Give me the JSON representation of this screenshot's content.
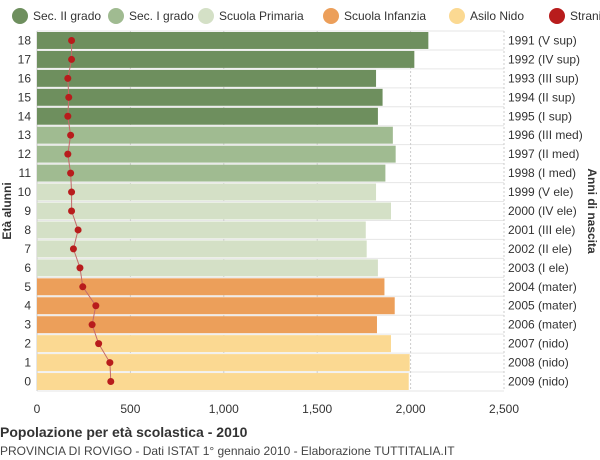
{
  "chart_data": {
    "type": "bar",
    "orientation": "horizontal",
    "categories": [
      "18",
      "17",
      "16",
      "15",
      "14",
      "13",
      "12",
      "11",
      "10",
      "9",
      "8",
      "7",
      "6",
      "5",
      "4",
      "3",
      "2",
      "1",
      "0"
    ],
    "birth_years": [
      "1991 (V sup)",
      "1992 (IV sup)",
      "1993 (III sup)",
      "1994 (II sup)",
      "1995 (I sup)",
      "1996 (III med)",
      "1997 (II med)",
      "1998 (I med)",
      "1999 (V ele)",
      "2000 (IV ele)",
      "2001 (III ele)",
      "2002 (II ele)",
      "2003 (I ele)",
      "2004 (mater)",
      "2005 (mater)",
      "2006 (mater)",
      "2007 (nido)",
      "2008 (nido)",
      "2009 (nido)"
    ],
    "values": [
      2095,
      2020,
      1815,
      1850,
      1825,
      1905,
      1920,
      1865,
      1815,
      1895,
      1760,
      1765,
      1825,
      1860,
      1915,
      1820,
      1895,
      1995,
      1990
    ],
    "level": [
      "sec2",
      "sec2",
      "sec2",
      "sec2",
      "sec2",
      "sec1",
      "sec1",
      "sec1",
      "prim",
      "prim",
      "prim",
      "prim",
      "prim",
      "inf",
      "inf",
      "inf",
      "nido",
      "nido",
      "nido"
    ],
    "stranieri": [
      185,
      185,
      165,
      170,
      165,
      180,
      165,
      180,
      185,
      185,
      220,
      195,
      230,
      245,
      315,
      295,
      330,
      390,
      395
    ],
    "xlim": [
      0,
      2500
    ],
    "xticks": [
      0,
      500,
      1000,
      1500,
      2000,
      2500
    ],
    "xtick_labels": [
      "0",
      "500",
      "1,000",
      "1,500",
      "2,000",
      "2,500"
    ],
    "ylabel_left": "Età alunni",
    "ylabel_right": "Anni di nascita",
    "grid": true,
    "legend_placement": "top",
    "legend": [
      {
        "key": "sec2",
        "label": "Sec. II grado",
        "color": "#6e8f5e"
      },
      {
        "key": "sec1",
        "label": "Sec. I grado",
        "color": "#a0bb91"
      },
      {
        "key": "prim",
        "label": "Scuola Primaria",
        "color": "#d4e0c6"
      },
      {
        "key": "inf",
        "label": "Scuola Infanzia",
        "color": "#ec9f5a"
      },
      {
        "key": "nido",
        "label": "Asilo Nido",
        "color": "#fbd992"
      },
      {
        "key": "str",
        "label": "Stranieri",
        "color": "#b81c1c"
      }
    ]
  },
  "footer": {
    "title": "Popolazione per età scolastica - 2010",
    "subtitle": "PROVINCIA DI ROVIGO - Dati ISTAT 1° gennaio 2010 - Elaborazione TUTTITALIA.IT"
  }
}
